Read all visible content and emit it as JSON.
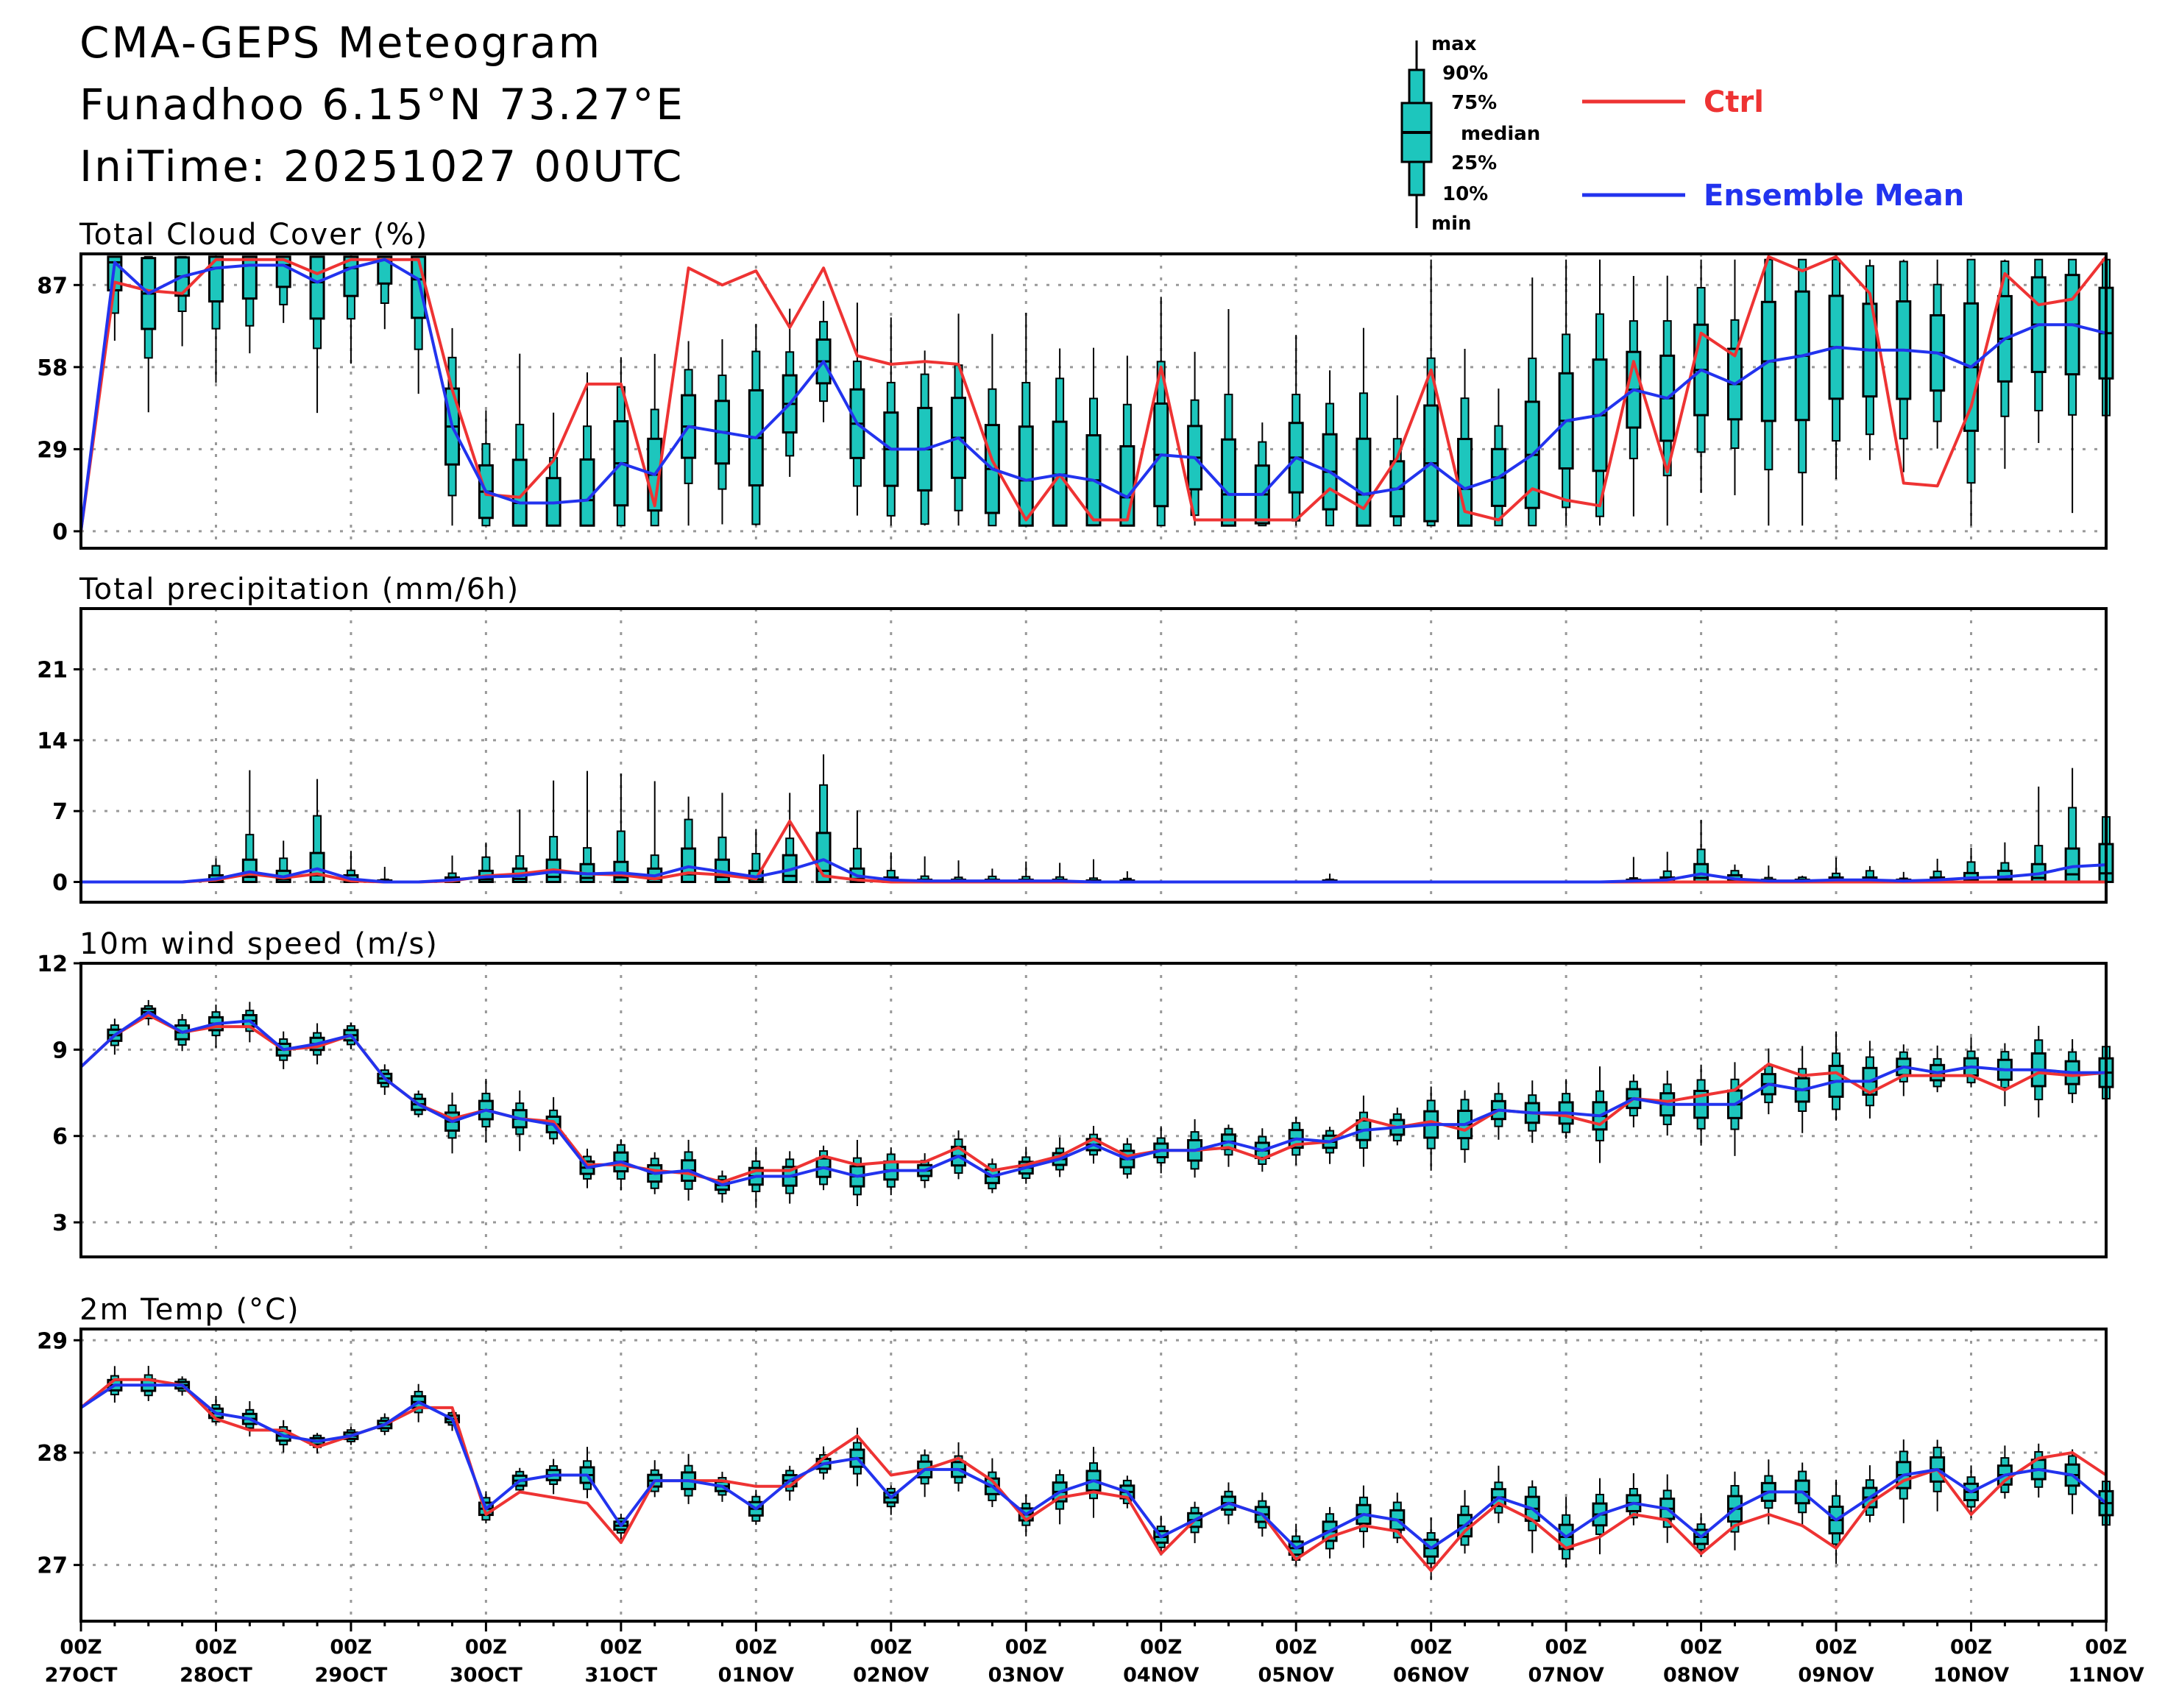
{
  "header": {
    "title": "CMA-GEPS Meteogram",
    "location": "Funadhoo 6.15°N 73.27°E",
    "init_time": "IniTime: 20251027 00UTC"
  },
  "legend": {
    "box_key": {
      "max": "max",
      "p90": "90%",
      "p75": "75%",
      "median": "median",
      "p25": "25%",
      "p10": "10%",
      "min": "min"
    },
    "ctrl_label": "Ctrl",
    "mean_label": "Ensemble Mean",
    "ctrl_color": "#ee3333",
    "mean_color": "#2233ee",
    "box_fill": "#1dc6bd"
  },
  "chart_data": [
    {
      "type": "line",
      "title": "Total Cloud Cover (%)",
      "ylim": [
        -6,
        98
      ],
      "yticks": [
        0,
        29,
        58,
        87
      ],
      "ctrl": [
        0,
        88,
        85,
        84,
        96,
        96,
        96,
        91,
        96,
        96,
        96,
        50,
        13,
        12,
        25,
        52,
        52,
        9,
        93,
        87,
        92,
        72,
        93,
        62,
        59,
        60,
        59,
        25,
        4,
        20,
        4,
        4,
        58,
        4,
        4,
        4,
        4,
        15,
        8,
        26,
        57,
        7,
        4,
        15,
        11,
        9,
        60,
        21,
        70,
        62,
        97,
        92,
        97,
        84,
        17,
        16,
        44,
        91,
        80,
        82,
        97
      ],
      "mean": [
        0,
        95,
        84,
        90,
        93,
        94,
        94,
        88,
        93,
        96,
        89,
        37,
        14,
        10,
        10,
        11,
        24,
        20,
        37,
        35,
        33,
        45,
        60,
        38,
        29,
        29,
        33,
        22,
        18,
        20,
        18,
        12,
        27,
        26,
        13,
        13,
        26,
        21,
        13,
        15,
        24,
        15,
        19,
        27,
        39,
        41,
        50,
        47,
        57,
        52,
        60,
        62,
        65,
        64,
        64,
        63,
        58,
        68,
        73,
        73,
        70
      ]
    },
    {
      "type": "line",
      "title": "Total precipitation (mm/6h)",
      "ylim": [
        -2,
        27
      ],
      "yticks": [
        0,
        7,
        14,
        21
      ],
      "ctrl": [
        0,
        0,
        0,
        0,
        0.2,
        0.8,
        0.4,
        0.8,
        0.1,
        0,
        0,
        0.1,
        0.6,
        0.8,
        1.2,
        0.8,
        0.7,
        0.3,
        0.9,
        0.7,
        0.3,
        6,
        0.6,
        0.2,
        0,
        0,
        0,
        0,
        0,
        0,
        0,
        0,
        0,
        0,
        0,
        0,
        0,
        0,
        0,
        0,
        0,
        0,
        0,
        0,
        0,
        0,
        0,
        0,
        0,
        0,
        0,
        0,
        0,
        0,
        0,
        0,
        0,
        0,
        0,
        0,
        0
      ],
      "mean": [
        0,
        0,
        0,
        0,
        0.3,
        1,
        0.5,
        1.3,
        0.3,
        0,
        0,
        0.2,
        0.5,
        0.6,
        1,
        0.8,
        0.9,
        0.6,
        1.5,
        1,
        0.5,
        1.2,
        2.2,
        0.6,
        0.2,
        0.1,
        0.1,
        0.1,
        0.1,
        0.1,
        0,
        0,
        0,
        0,
        0,
        0,
        0,
        0,
        0,
        0,
        0,
        0,
        0,
        0,
        0,
        0,
        0.1,
        0.2,
        0.8,
        0.3,
        0.1,
        0.1,
        0.2,
        0.2,
        0.1,
        0.2,
        0.4,
        0.5,
        0.8,
        1.5,
        1.7
      ]
    },
    {
      "type": "line",
      "title": "10m wind speed (m/s)",
      "ylim": [
        1.8,
        12
      ],
      "yticks": [
        3,
        6,
        9,
        12
      ],
      "ctrl": [
        8.4,
        9.5,
        10.2,
        9.6,
        9.8,
        9.8,
        9,
        9.1,
        9.5,
        8,
        7.1,
        6.6,
        6.9,
        6.6,
        6.5,
        5,
        5,
        4.8,
        4.7,
        4.4,
        4.8,
        4.8,
        5.3,
        5,
        5.1,
        5.1,
        5.6,
        4.8,
        5,
        5.3,
        5.9,
        5.3,
        5.5,
        5.5,
        5.6,
        5.2,
        5.7,
        5.8,
        6.6,
        6.3,
        6.5,
        6.2,
        6.9,
        6.8,
        6.7,
        6.4,
        7.3,
        7.2,
        7.4,
        7.6,
        8.5,
        8.1,
        8.2,
        7.5,
        8.1,
        8.1,
        8.1,
        7.6,
        8.2,
        8.1,
        8.2
      ],
      "mean": [
        8.4,
        9.5,
        10.3,
        9.6,
        9.9,
        10,
        9,
        9.2,
        9.5,
        8,
        7.1,
        6.5,
        6.9,
        6.6,
        6.4,
        4.9,
        5.1,
        4.7,
        4.8,
        4.3,
        4.6,
        4.6,
        4.9,
        4.6,
        4.8,
        4.8,
        5.3,
        4.6,
        4.9,
        5.2,
        5.7,
        5.2,
        5.5,
        5.5,
        5.8,
        5.5,
        5.9,
        5.8,
        6.2,
        6.3,
        6.4,
        6.4,
        6.9,
        6.8,
        6.8,
        6.7,
        7.3,
        7.1,
        7.1,
        7.1,
        7.8,
        7.6,
        7.9,
        7.9,
        8.4,
        8.2,
        8.4,
        8.3,
        8.3,
        8.2,
        8.2
      ]
    },
    {
      "type": "line",
      "title": "2m Temp (°C)",
      "ylim": [
        26.5,
        29.1
      ],
      "yticks": [
        27,
        28,
        29
      ],
      "ctrl": [
        28.4,
        28.65,
        28.65,
        28.6,
        28.3,
        28.2,
        28.2,
        28.05,
        28.15,
        28.25,
        28.4,
        28.4,
        27.45,
        27.65,
        27.6,
        27.55,
        27.2,
        27.75,
        27.75,
        27.75,
        27.7,
        27.7,
        27.95,
        28.15,
        27.8,
        27.85,
        27.95,
        27.75,
        27.4,
        27.6,
        27.65,
        27.6,
        27.1,
        27.4,
        27.55,
        27.45,
        27.05,
        27.25,
        27.35,
        27.3,
        26.95,
        27.3,
        27.55,
        27.4,
        27.15,
        27.25,
        27.45,
        27.4,
        27.1,
        27.35,
        27.45,
        27.35,
        27.15,
        27.55,
        27.75,
        27.85,
        27.45,
        27.75,
        27.95,
        28.0,
        27.8
      ],
      "mean": [
        28.4,
        28.6,
        28.6,
        28.6,
        28.35,
        28.3,
        28.15,
        28.1,
        28.15,
        28.25,
        28.45,
        28.3,
        27.5,
        27.75,
        27.8,
        27.8,
        27.35,
        27.75,
        27.75,
        27.7,
        27.5,
        27.75,
        27.9,
        27.95,
        27.6,
        27.85,
        27.85,
        27.7,
        27.45,
        27.65,
        27.75,
        27.65,
        27.25,
        27.4,
        27.55,
        27.45,
        27.15,
        27.3,
        27.45,
        27.4,
        27.15,
        27.35,
        27.6,
        27.5,
        27.25,
        27.45,
        27.55,
        27.5,
        27.25,
        27.5,
        27.65,
        27.65,
        27.4,
        27.6,
        27.8,
        27.85,
        27.65,
        27.8,
        27.85,
        27.8,
        27.55
      ]
    }
  ],
  "x_axis": {
    "tick_hour": "00Z",
    "tick_dates": [
      "27OCT",
      "28OCT",
      "29OCT",
      "30OCT",
      "31OCT",
      "01NOV",
      "02NOV",
      "03NOV",
      "04NOV",
      "05NOV",
      "06NOV",
      "07NOV",
      "08NOV",
      "09NOV",
      "10NOV",
      "11NOV"
    ]
  }
}
